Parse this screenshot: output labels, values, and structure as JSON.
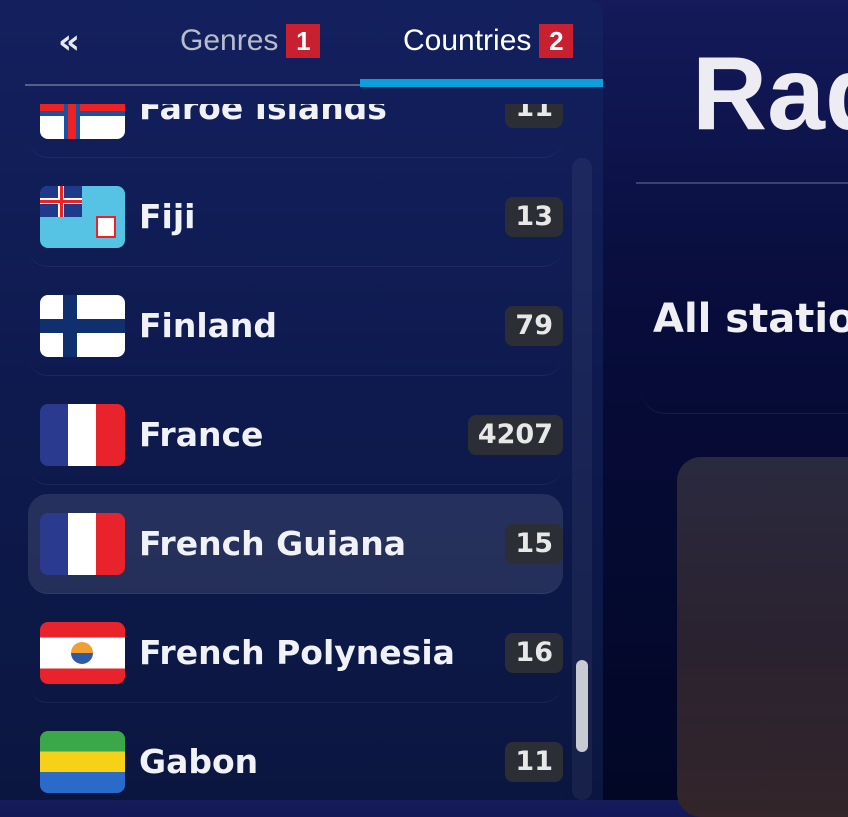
{
  "sidebar": {
    "collapse_icon": "double-chevron-left",
    "tabs": [
      {
        "label": "Genres",
        "badge": "1",
        "active": false
      },
      {
        "label": "Countries",
        "badge": "2",
        "active": true
      }
    ],
    "countries": [
      {
        "name": "Faroe Islands",
        "count": "11"
      },
      {
        "name": "Fiji",
        "count": "13"
      },
      {
        "name": "Finland",
        "count": "79"
      },
      {
        "name": "France",
        "count": "4207"
      },
      {
        "name": "French Guiana",
        "count": "15"
      },
      {
        "name": "French Polynesia",
        "count": "16"
      },
      {
        "name": "Gabon",
        "count": "11"
      }
    ]
  },
  "main": {
    "title": "Rad",
    "section": "All statio"
  },
  "colors": {
    "accent": "#0aa0dc",
    "badge": "#c8202f"
  }
}
